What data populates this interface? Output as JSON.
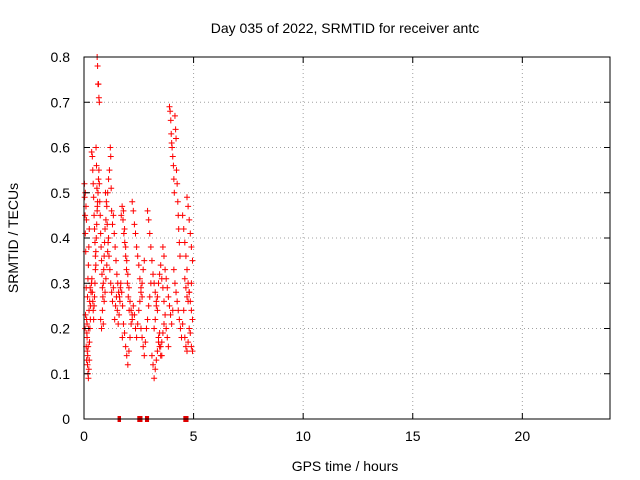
{
  "chart_data": {
    "type": "scatter",
    "title": "Day 035 of 2022, SRMTID for receiver antc",
    "xlabel": "GPS time / hours",
    "ylabel": "SRMTID / TECUs",
    "xlim": [
      0,
      24
    ],
    "ylim": [
      0,
      0.8
    ],
    "x_ticks": [
      0,
      5,
      10,
      15,
      20
    ],
    "y_ticks": [
      0,
      0.1,
      0.2,
      0.3,
      0.4,
      0.5,
      0.6,
      0.7,
      0.8
    ],
    "x_tick_labels": [
      "0",
      "5",
      "10",
      "15",
      "20"
    ],
    "y_tick_labels": [
      "0",
      "0.1",
      "0.2",
      "0.3",
      "0.4",
      "0.5",
      "0.6",
      "0.7",
      "0.8"
    ],
    "grid": true,
    "marker": "+",
    "color": "#ff0000",
    "series": [
      {
        "name": "SRMTID",
        "points": [
          [
            0.02,
            0.52
          ],
          [
            0.03,
            0.49
          ],
          [
            0.05,
            0.45
          ],
          [
            0.06,
            0.41
          ],
          [
            0.08,
            0.37
          ],
          [
            0.1,
            0.29
          ],
          [
            0.12,
            0.22
          ],
          [
            0.14,
            0.18
          ],
          [
            0.15,
            0.15
          ],
          [
            0.16,
            0.12
          ],
          [
            0.18,
            0.1
          ],
          [
            0.2,
            0.09
          ],
          [
            0.22,
            0.11
          ],
          [
            0.24,
            0.13
          ],
          [
            0.25,
            0.17
          ],
          [
            0.27,
            0.2
          ],
          [
            0.29,
            0.22
          ],
          [
            0.3,
            0.25
          ],
          [
            0.32,
            0.28
          ],
          [
            0.34,
            0.3
          ],
          [
            0.06,
            0.5
          ],
          [
            0.09,
            0.47
          ],
          [
            0.11,
            0.44
          ],
          [
            0.13,
            0.19
          ],
          [
            0.17,
            0.14
          ],
          [
            0.19,
            0.16
          ],
          [
            0.21,
            0.2
          ],
          [
            0.23,
            0.24
          ],
          [
            0.26,
            0.26
          ],
          [
            0.28,
            0.29
          ],
          [
            0.05,
            0.2
          ],
          [
            0.07,
            0.23
          ],
          [
            0.1,
            0.16
          ],
          [
            0.12,
            0.13
          ],
          [
            0.14,
            0.21
          ],
          [
            0.16,
            0.27
          ],
          [
            0.18,
            0.31
          ],
          [
            0.2,
            0.34
          ],
          [
            0.22,
            0.38
          ],
          [
            0.24,
            0.42
          ],
          [
            0.35,
            0.59
          ],
          [
            0.38,
            0.58
          ],
          [
            0.4,
            0.55
          ],
          [
            0.42,
            0.52
          ],
          [
            0.44,
            0.49
          ],
          [
            0.46,
            0.45
          ],
          [
            0.48,
            0.42
          ],
          [
            0.5,
            0.39
          ],
          [
            0.52,
            0.36
          ],
          [
            0.54,
            0.34
          ],
          [
            0.36,
            0.31
          ],
          [
            0.38,
            0.28
          ],
          [
            0.4,
            0.26
          ],
          [
            0.42,
            0.24
          ],
          [
            0.44,
            0.22
          ],
          [
            0.46,
            0.25
          ],
          [
            0.48,
            0.27
          ],
          [
            0.5,
            0.3
          ],
          [
            0.52,
            0.33
          ],
          [
            0.54,
            0.37
          ],
          [
            0.56,
            0.4
          ],
          [
            0.58,
            0.43
          ],
          [
            0.6,
            0.46
          ],
          [
            0.62,
            0.48
          ],
          [
            0.64,
            0.5
          ],
          [
            0.66,
            0.53
          ],
          [
            0.68,
            0.55
          ],
          [
            0.7,
            0.52
          ],
          [
            0.72,
            0.48
          ],
          [
            0.74,
            0.45
          ],
          [
            0.6,
            0.8
          ],
          [
            0.62,
            0.78
          ],
          [
            0.64,
            0.74
          ],
          [
            0.66,
            0.74
          ],
          [
            0.68,
            0.71
          ],
          [
            0.7,
            0.7
          ],
          [
            0.55,
            0.6
          ],
          [
            0.57,
            0.56
          ],
          [
            0.59,
            0.51
          ],
          [
            0.61,
            0.47
          ],
          [
            0.76,
            0.41
          ],
          [
            0.78,
            0.38
          ],
          [
            0.8,
            0.35
          ],
          [
            0.82,
            0.32
          ],
          [
            0.84,
            0.29
          ],
          [
            0.86,
            0.27
          ],
          [
            0.88,
            0.3
          ],
          [
            0.9,
            0.33
          ],
          [
            0.92,
            0.36
          ],
          [
            0.94,
            0.39
          ],
          [
            0.76,
            0.22
          ],
          [
            0.8,
            0.2
          ],
          [
            0.84,
            0.24
          ],
          [
            0.88,
            0.21
          ],
          [
            0.92,
            0.26
          ],
          [
            0.96,
            0.28
          ],
          [
            1.0,
            0.31
          ],
          [
            1.04,
            0.34
          ],
          [
            1.08,
            0.37
          ],
          [
            1.12,
            0.4
          ],
          [
            0.96,
            0.42
          ],
          [
            1.0,
            0.44
          ],
          [
            1.04,
            0.47
          ],
          [
            1.08,
            0.5
          ],
          [
            1.12,
            0.53
          ],
          [
            1.16,
            0.55
          ],
          [
            1.2,
            0.6
          ],
          [
            1.22,
            0.58
          ],
          [
            1.24,
            0.51
          ],
          [
            1.26,
            0.46
          ],
          [
            0.98,
            0.5
          ],
          [
            1.02,
            0.48
          ],
          [
            1.06,
            0.43
          ],
          [
            1.1,
            0.39
          ],
          [
            1.14,
            0.36
          ],
          [
            1.18,
            0.33
          ],
          [
            1.22,
            0.3
          ],
          [
            1.26,
            0.28
          ],
          [
            1.3,
            0.26
          ],
          [
            1.34,
            0.29
          ],
          [
            1.3,
            0.43
          ],
          [
            1.34,
            0.45
          ],
          [
            1.38,
            0.41
          ],
          [
            1.42,
            0.38
          ],
          [
            1.46,
            0.35
          ],
          [
            1.5,
            0.32
          ],
          [
            1.54,
            0.3
          ],
          [
            1.58,
            0.28
          ],
          [
            1.62,
            0.27
          ],
          [
            1.66,
            0.29
          ],
          [
            1.4,
            0.22
          ],
          [
            1.44,
            0.25
          ],
          [
            1.48,
            0.27
          ],
          [
            1.52,
            0.24
          ],
          [
            1.56,
            0.21
          ],
          [
            1.6,
            0.23
          ],
          [
            1.64,
            0.26
          ],
          [
            1.68,
            0.3
          ],
          [
            1.72,
            0.28
          ],
          [
            1.76,
            0.25
          ],
          [
            1.7,
            0.45
          ],
          [
            1.74,
            0.47
          ],
          [
            1.78,
            0.44
          ],
          [
            1.82,
            0.41
          ],
          [
            1.86,
            0.39
          ],
          [
            1.9,
            0.36
          ],
          [
            1.94,
            0.33
          ],
          [
            1.98,
            0.3
          ],
          [
            2.02,
            0.27
          ],
          [
            2.06,
            0.24
          ],
          [
            1.75,
            0.18
          ],
          [
            1.8,
            0.21
          ],
          [
            1.85,
            0.19
          ],
          [
            1.9,
            0.16
          ],
          [
            1.95,
            0.14
          ],
          [
            2.0,
            0.12
          ],
          [
            2.05,
            0.15
          ],
          [
            2.1,
            0.18
          ],
          [
            2.15,
            0.21
          ],
          [
            2.2,
            0.23
          ],
          [
            1.8,
            0.46
          ],
          [
            1.85,
            0.42
          ],
          [
            1.9,
            0.38
          ],
          [
            1.95,
            0.35
          ],
          [
            2.0,
            0.32
          ],
          [
            2.05,
            0.29
          ],
          [
            2.1,
            0.26
          ],
          [
            2.15,
            0.24
          ],
          [
            2.2,
            0.22
          ],
          [
            2.25,
            0.25
          ],
          [
            2.2,
            0.48
          ],
          [
            2.25,
            0.46
          ],
          [
            2.3,
            0.43
          ],
          [
            2.35,
            0.41
          ],
          [
            2.4,
            0.38
          ],
          [
            2.45,
            0.36
          ],
          [
            2.5,
            0.34
          ],
          [
            2.55,
            0.31
          ],
          [
            2.6,
            0.29
          ],
          [
            2.65,
            0.27
          ],
          [
            2.3,
            0.23
          ],
          [
            2.35,
            0.2
          ],
          [
            2.4,
            0.18
          ],
          [
            2.45,
            0.21
          ],
          [
            2.5,
            0.24
          ],
          [
            2.55,
            0.26
          ],
          [
            2.6,
            0.28
          ],
          [
            2.65,
            0.3
          ],
          [
            2.7,
            0.33
          ],
          [
            2.75,
            0.35
          ],
          [
            2.6,
            0.2
          ],
          [
            2.65,
            0.18
          ],
          [
            2.7,
            0.16
          ],
          [
            2.75,
            0.14
          ],
          [
            2.8,
            0.17
          ],
          [
            2.85,
            0.2
          ],
          [
            2.9,
            0.22
          ],
          [
            2.95,
            0.25
          ],
          [
            3.0,
            0.27
          ],
          [
            3.05,
            0.3
          ],
          [
            2.9,
            0.46
          ],
          [
            2.95,
            0.44
          ],
          [
            3.0,
            0.41
          ],
          [
            3.05,
            0.38
          ],
          [
            3.1,
            0.35
          ],
          [
            3.15,
            0.32
          ],
          [
            3.2,
            0.3
          ],
          [
            3.25,
            0.28
          ],
          [
            3.3,
            0.26
          ],
          [
            3.35,
            0.24
          ],
          [
            3.1,
            0.14
          ],
          [
            3.15,
            0.12
          ],
          [
            3.2,
            0.09
          ],
          [
            3.25,
            0.11
          ],
          [
            3.3,
            0.13
          ],
          [
            3.35,
            0.15
          ],
          [
            3.4,
            0.17
          ],
          [
            3.45,
            0.19
          ],
          [
            3.5,
            0.16
          ],
          [
            3.55,
            0.14
          ],
          [
            3.2,
            0.2
          ],
          [
            3.25,
            0.22
          ],
          [
            3.3,
            0.25
          ],
          [
            3.35,
            0.27
          ],
          [
            3.4,
            0.3
          ],
          [
            3.45,
            0.32
          ],
          [
            3.5,
            0.34
          ],
          [
            3.55,
            0.31
          ],
          [
            3.6,
            0.29
          ],
          [
            3.65,
            0.26
          ],
          [
            3.4,
            0.18
          ],
          [
            3.45,
            0.16
          ],
          [
            3.5,
            0.14
          ],
          [
            3.55,
            0.17
          ],
          [
            3.6,
            0.19
          ],
          [
            3.65,
            0.21
          ],
          [
            3.7,
            0.23
          ],
          [
            3.75,
            0.2
          ],
          [
            3.8,
            0.18
          ],
          [
            3.85,
            0.16
          ],
          [
            3.6,
            0.38
          ],
          [
            3.65,
            0.36
          ],
          [
            3.7,
            0.33
          ],
          [
            3.75,
            0.31
          ],
          [
            3.8,
            0.29
          ],
          [
            3.85,
            0.27
          ],
          [
            3.9,
            0.25
          ],
          [
            3.95,
            0.23
          ],
          [
            4.0,
            0.21
          ],
          [
            4.05,
            0.24
          ],
          [
            3.9,
            0.69
          ],
          [
            3.93,
            0.68
          ],
          [
            3.96,
            0.66
          ],
          [
            3.98,
            0.63
          ],
          [
            4.0,
            0.61
          ],
          [
            4.02,
            0.6
          ],
          [
            4.05,
            0.58
          ],
          [
            4.08,
            0.56
          ],
          [
            4.1,
            0.53
          ],
          [
            4.12,
            0.5
          ],
          [
            4.15,
            0.67
          ],
          [
            4.18,
            0.64
          ],
          [
            4.2,
            0.62
          ],
          [
            4.22,
            0.55
          ],
          [
            4.25,
            0.52
          ],
          [
            4.28,
            0.48
          ],
          [
            4.3,
            0.45
          ],
          [
            4.32,
            0.42
          ],
          [
            4.35,
            0.39
          ],
          [
            4.38,
            0.36
          ],
          [
            4.1,
            0.33
          ],
          [
            4.15,
            0.3
          ],
          [
            4.2,
            0.28
          ],
          [
            4.25,
            0.26
          ],
          [
            4.3,
            0.24
          ],
          [
            4.35,
            0.22
          ],
          [
            4.4,
            0.2
          ],
          [
            4.45,
            0.18
          ],
          [
            4.5,
            0.21
          ],
          [
            4.55,
            0.24
          ],
          [
            4.5,
            0.45
          ],
          [
            4.55,
            0.42
          ],
          [
            4.6,
            0.39
          ],
          [
            4.65,
            0.36
          ],
          [
            4.7,
            0.33
          ],
          [
            4.75,
            0.3
          ],
          [
            4.8,
            0.28
          ],
          [
            4.85,
            0.26
          ],
          [
            4.9,
            0.24
          ],
          [
            4.95,
            0.22
          ],
          [
            4.7,
            0.49
          ],
          [
            4.75,
            0.47
          ],
          [
            4.8,
            0.44
          ],
          [
            4.85,
            0.41
          ],
          [
            4.9,
            0.38
          ],
          [
            4.95,
            0.35
          ],
          [
            4.6,
            0.18
          ],
          [
            4.65,
            0.16
          ],
          [
            4.7,
            0.15
          ],
          [
            4.75,
            0.17
          ],
          [
            4.8,
            0.2
          ],
          [
            4.85,
            0.19
          ],
          [
            4.9,
            0.16
          ],
          [
            4.95,
            0.15
          ],
          [
            4.6,
            0.31
          ],
          [
            4.65,
            0.29
          ],
          [
            4.7,
            0.27
          ],
          [
            4.75,
            0.26
          ],
          [
            4.8,
            0.28
          ],
          [
            4.9,
            0.3
          ],
          [
            1.6,
            0.0
          ],
          [
            1.62,
            0.0
          ],
          [
            2.5,
            0.0
          ],
          [
            2.55,
            0.0
          ],
          [
            2.6,
            0.0
          ],
          [
            2.85,
            0.0
          ],
          [
            2.9,
            0.0
          ],
          [
            4.6,
            0.0
          ],
          [
            4.65,
            0.0
          ],
          [
            4.7,
            0.0
          ]
        ]
      }
    ]
  }
}
